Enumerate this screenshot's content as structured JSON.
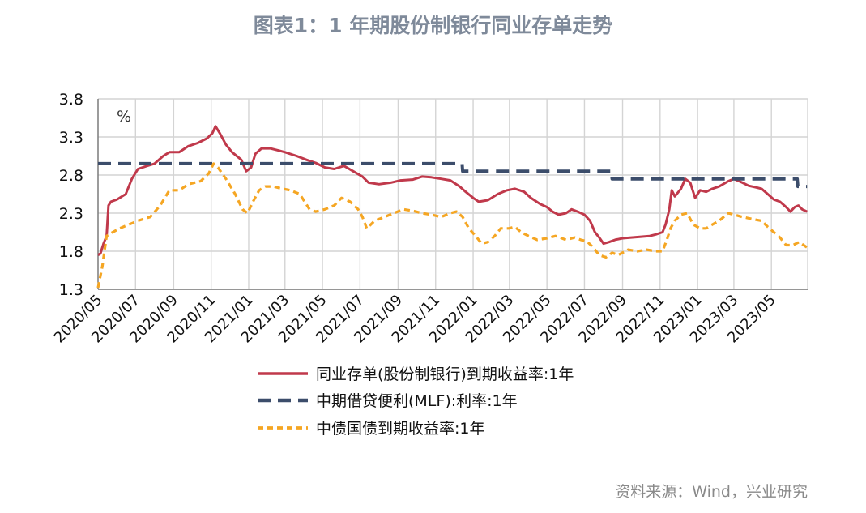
{
  "chart_data": {
    "type": "line",
    "title": "图表1：1 年期股份制银行同业存单走势",
    "unit_label": "%",
    "source": "资料来源：Wind，兴业研究",
    "ylim": [
      1.3,
      3.8
    ],
    "yticks": [
      "3.8",
      "3.3",
      "2.8",
      "2.3",
      "1.8",
      "1.3"
    ],
    "xlim": [
      "2020-05",
      "2023-06"
    ],
    "xticks": [
      "2020/05",
      "2020/07",
      "2020/09",
      "2020/11",
      "2021/01",
      "2021/03",
      "2021/05",
      "2021/07",
      "2021/09",
      "2021/11",
      "2022/01",
      "2022/03",
      "2022/05",
      "2022/07",
      "2022/09",
      "2022/11",
      "2023/01",
      "2023/03",
      "2023/05"
    ],
    "grid": true,
    "legend_position": "bottom",
    "series": [
      {
        "name": "同业存单(股份制银行)到期收益率:1年",
        "color": "#c0394b",
        "style": "solid",
        "points": [
          [
            "2020-05-01",
            1.75
          ],
          [
            "2020-05-05",
            1.77
          ],
          [
            "2020-05-10",
            1.9
          ],
          [
            "2020-05-15",
            2.0
          ],
          [
            "2020-05-18",
            2.4
          ],
          [
            "2020-05-22",
            2.45
          ],
          [
            "2020-06-01",
            2.48
          ],
          [
            "2020-06-15",
            2.55
          ],
          [
            "2020-06-25",
            2.75
          ],
          [
            "2020-07-05",
            2.88
          ],
          [
            "2020-07-20",
            2.92
          ],
          [
            "2020-08-01",
            2.95
          ],
          [
            "2020-08-15",
            3.05
          ],
          [
            "2020-08-25",
            3.1
          ],
          [
            "2020-09-10",
            3.1
          ],
          [
            "2020-09-25",
            3.18
          ],
          [
            "2020-10-10",
            3.22
          ],
          [
            "2020-10-25",
            3.28
          ],
          [
            "2020-11-03",
            3.35
          ],
          [
            "2020-11-08",
            3.44
          ],
          [
            "2020-11-15",
            3.35
          ],
          [
            "2020-11-25",
            3.2
          ],
          [
            "2020-12-05",
            3.1
          ],
          [
            "2020-12-20",
            3.0
          ],
          [
            "2020-12-28",
            2.85
          ],
          [
            "2021-01-05",
            2.9
          ],
          [
            "2021-01-12",
            3.08
          ],
          [
            "2021-01-22",
            3.15
          ],
          [
            "2021-02-05",
            3.15
          ],
          [
            "2021-02-20",
            3.12
          ],
          [
            "2021-03-01",
            3.1
          ],
          [
            "2021-03-20",
            3.05
          ],
          [
            "2021-04-05",
            3.0
          ],
          [
            "2021-04-20",
            2.96
          ],
          [
            "2021-05-05",
            2.9
          ],
          [
            "2021-05-20",
            2.88
          ],
          [
            "2021-06-05",
            2.92
          ],
          [
            "2021-06-20",
            2.85
          ],
          [
            "2021-07-05",
            2.78
          ],
          [
            "2021-07-15",
            2.7
          ],
          [
            "2021-08-01",
            2.68
          ],
          [
            "2021-08-20",
            2.7
          ],
          [
            "2021-09-05",
            2.73
          ],
          [
            "2021-09-25",
            2.74
          ],
          [
            "2021-10-10",
            2.78
          ],
          [
            "2021-10-25",
            2.77
          ],
          [
            "2021-11-10",
            2.75
          ],
          [
            "2021-11-25",
            2.73
          ],
          [
            "2021-12-10",
            2.65
          ],
          [
            "2021-12-20",
            2.58
          ],
          [
            "2022-01-01",
            2.5
          ],
          [
            "2022-01-10",
            2.45
          ],
          [
            "2022-01-25",
            2.47
          ],
          [
            "2022-02-10",
            2.55
          ],
          [
            "2022-02-25",
            2.6
          ],
          [
            "2022-03-10",
            2.62
          ],
          [
            "2022-03-25",
            2.58
          ],
          [
            "2022-04-05",
            2.5
          ],
          [
            "2022-04-20",
            2.42
          ],
          [
            "2022-05-01",
            2.38
          ],
          [
            "2022-05-10",
            2.32
          ],
          [
            "2022-05-20",
            2.28
          ],
          [
            "2022-06-01",
            2.3
          ],
          [
            "2022-06-10",
            2.35
          ],
          [
            "2022-06-20",
            2.32
          ],
          [
            "2022-07-01",
            2.28
          ],
          [
            "2022-07-10",
            2.2
          ],
          [
            "2022-07-18",
            2.05
          ],
          [
            "2022-07-25",
            1.98
          ],
          [
            "2022-08-01",
            1.9
          ],
          [
            "2022-08-10",
            1.92
          ],
          [
            "2022-08-20",
            1.95
          ],
          [
            "2022-09-01",
            1.97
          ],
          [
            "2022-09-15",
            1.98
          ],
          [
            "2022-10-01",
            1.99
          ],
          [
            "2022-10-15",
            2.0
          ],
          [
            "2022-10-25",
            2.02
          ],
          [
            "2022-11-05",
            2.05
          ],
          [
            "2022-11-10",
            2.15
          ],
          [
            "2022-11-16",
            2.35
          ],
          [
            "2022-11-20",
            2.6
          ],
          [
            "2022-11-25",
            2.52
          ],
          [
            "2022-12-05",
            2.62
          ],
          [
            "2022-12-12",
            2.75
          ],
          [
            "2022-12-20",
            2.7
          ],
          [
            "2022-12-28",
            2.5
          ],
          [
            "2023-01-05",
            2.6
          ],
          [
            "2023-01-15",
            2.58
          ],
          [
            "2023-01-25",
            2.62
          ],
          [
            "2023-02-05",
            2.65
          ],
          [
            "2023-02-20",
            2.72
          ],
          [
            "2023-03-01",
            2.75
          ],
          [
            "2023-03-15",
            2.7
          ],
          [
            "2023-03-25",
            2.66
          ],
          [
            "2023-04-05",
            2.64
          ],
          [
            "2023-04-15",
            2.62
          ],
          [
            "2023-04-25",
            2.55
          ],
          [
            "2023-05-05",
            2.48
          ],
          [
            "2023-05-15",
            2.45
          ],
          [
            "2023-05-25",
            2.38
          ],
          [
            "2023-06-01",
            2.32
          ],
          [
            "2023-06-08",
            2.38
          ],
          [
            "2023-06-14",
            2.4
          ],
          [
            "2023-06-20",
            2.35
          ],
          [
            "2023-06-28",
            2.32
          ]
        ]
      },
      {
        "name": "中期借贷便利(MLF):利率:1年",
        "color": "#3c4d6b",
        "style": "dashed",
        "points": [
          [
            "2020-05-01",
            2.95
          ],
          [
            "2021-12-14",
            2.95
          ],
          [
            "2021-12-15",
            2.85
          ],
          [
            "2022-08-14",
            2.85
          ],
          [
            "2022-08-15",
            2.75
          ],
          [
            "2023-06-12",
            2.75
          ],
          [
            "2023-06-13",
            2.65
          ],
          [
            "2023-06-28",
            2.65
          ]
        ]
      },
      {
        "name": "中债国债到期收益率:1年",
        "color": "#f5a623",
        "style": "dotted",
        "points": [
          [
            "2020-05-01",
            1.32
          ],
          [
            "2020-05-08",
            1.6
          ],
          [
            "2020-05-15",
            2.0
          ],
          [
            "2020-05-25",
            2.05
          ],
          [
            "2020-06-05",
            2.1
          ],
          [
            "2020-06-20",
            2.15
          ],
          [
            "2020-07-05",
            2.2
          ],
          [
            "2020-07-25",
            2.25
          ],
          [
            "2020-08-10",
            2.4
          ],
          [
            "2020-08-25",
            2.6
          ],
          [
            "2020-09-10",
            2.6
          ],
          [
            "2020-09-25",
            2.68
          ],
          [
            "2020-10-15",
            2.72
          ],
          [
            "2020-10-28",
            2.82
          ],
          [
            "2020-11-05",
            2.95
          ],
          [
            "2020-11-12",
            2.9
          ],
          [
            "2020-11-25",
            2.75
          ],
          [
            "2020-12-10",
            2.55
          ],
          [
            "2020-12-22",
            2.35
          ],
          [
            "2020-12-30",
            2.3
          ],
          [
            "2021-01-08",
            2.45
          ],
          [
            "2021-01-18",
            2.6
          ],
          [
            "2021-01-28",
            2.65
          ],
          [
            "2021-02-10",
            2.65
          ],
          [
            "2021-02-25",
            2.62
          ],
          [
            "2021-03-10",
            2.6
          ],
          [
            "2021-03-25",
            2.55
          ],
          [
            "2021-04-10",
            2.35
          ],
          [
            "2021-04-20",
            2.32
          ],
          [
            "2021-05-05",
            2.35
          ],
          [
            "2021-05-20",
            2.4
          ],
          [
            "2021-06-01",
            2.5
          ],
          [
            "2021-06-15",
            2.45
          ],
          [
            "2021-06-28",
            2.35
          ],
          [
            "2021-07-05",
            2.25
          ],
          [
            "2021-07-12",
            2.1
          ],
          [
            "2021-07-25",
            2.2
          ],
          [
            "2021-08-10",
            2.25
          ],
          [
            "2021-08-25",
            2.3
          ],
          [
            "2021-09-10",
            2.35
          ],
          [
            "2021-09-25",
            2.33
          ],
          [
            "2021-10-10",
            2.3
          ],
          [
            "2021-10-25",
            2.28
          ],
          [
            "2021-11-10",
            2.25
          ],
          [
            "2021-11-25",
            2.3
          ],
          [
            "2021-12-05",
            2.32
          ],
          [
            "2021-12-15",
            2.25
          ],
          [
            "2021-12-25",
            2.1
          ],
          [
            "2022-01-05",
            2.0
          ],
          [
            "2022-01-15",
            1.9
          ],
          [
            "2022-01-25",
            1.92
          ],
          [
            "2022-02-05",
            2.0
          ],
          [
            "2022-02-15",
            2.1
          ],
          [
            "2022-02-28",
            2.1
          ],
          [
            "2022-03-10",
            2.12
          ],
          [
            "2022-03-20",
            2.05
          ],
          [
            "2022-04-01",
            2.0
          ],
          [
            "2022-04-15",
            1.95
          ],
          [
            "2022-05-01",
            1.97
          ],
          [
            "2022-05-15",
            2.0
          ],
          [
            "2022-06-01",
            1.95
          ],
          [
            "2022-06-15",
            1.98
          ],
          [
            "2022-06-25",
            1.95
          ],
          [
            "2022-07-05",
            1.93
          ],
          [
            "2022-07-15",
            1.85
          ],
          [
            "2022-07-25",
            1.75
          ],
          [
            "2022-08-05",
            1.72
          ],
          [
            "2022-08-15",
            1.78
          ],
          [
            "2022-08-25",
            1.75
          ],
          [
            "2022-09-10",
            1.82
          ],
          [
            "2022-09-25",
            1.8
          ],
          [
            "2022-10-10",
            1.82
          ],
          [
            "2022-10-25",
            1.8
          ],
          [
            "2022-11-05",
            1.8
          ],
          [
            "2022-11-12",
            1.95
          ],
          [
            "2022-11-18",
            2.1
          ],
          [
            "2022-11-25",
            2.2
          ],
          [
            "2022-12-05",
            2.28
          ],
          [
            "2022-12-15",
            2.3
          ],
          [
            "2022-12-25",
            2.15
          ],
          [
            "2023-01-05",
            2.1
          ],
          [
            "2023-01-15",
            2.1
          ],
          [
            "2023-01-25",
            2.15
          ],
          [
            "2023-02-05",
            2.2
          ],
          [
            "2023-02-20",
            2.3
          ],
          [
            "2023-03-01",
            2.28
          ],
          [
            "2023-03-15",
            2.25
          ],
          [
            "2023-04-01",
            2.22
          ],
          [
            "2023-04-15",
            2.2
          ],
          [
            "2023-04-25",
            2.12
          ],
          [
            "2023-05-05",
            2.05
          ],
          [
            "2023-05-15",
            1.98
          ],
          [
            "2023-05-25",
            1.88
          ],
          [
            "2023-06-05",
            1.88
          ],
          [
            "2023-06-15",
            1.92
          ],
          [
            "2023-06-28",
            1.85
          ]
        ]
      }
    ]
  }
}
